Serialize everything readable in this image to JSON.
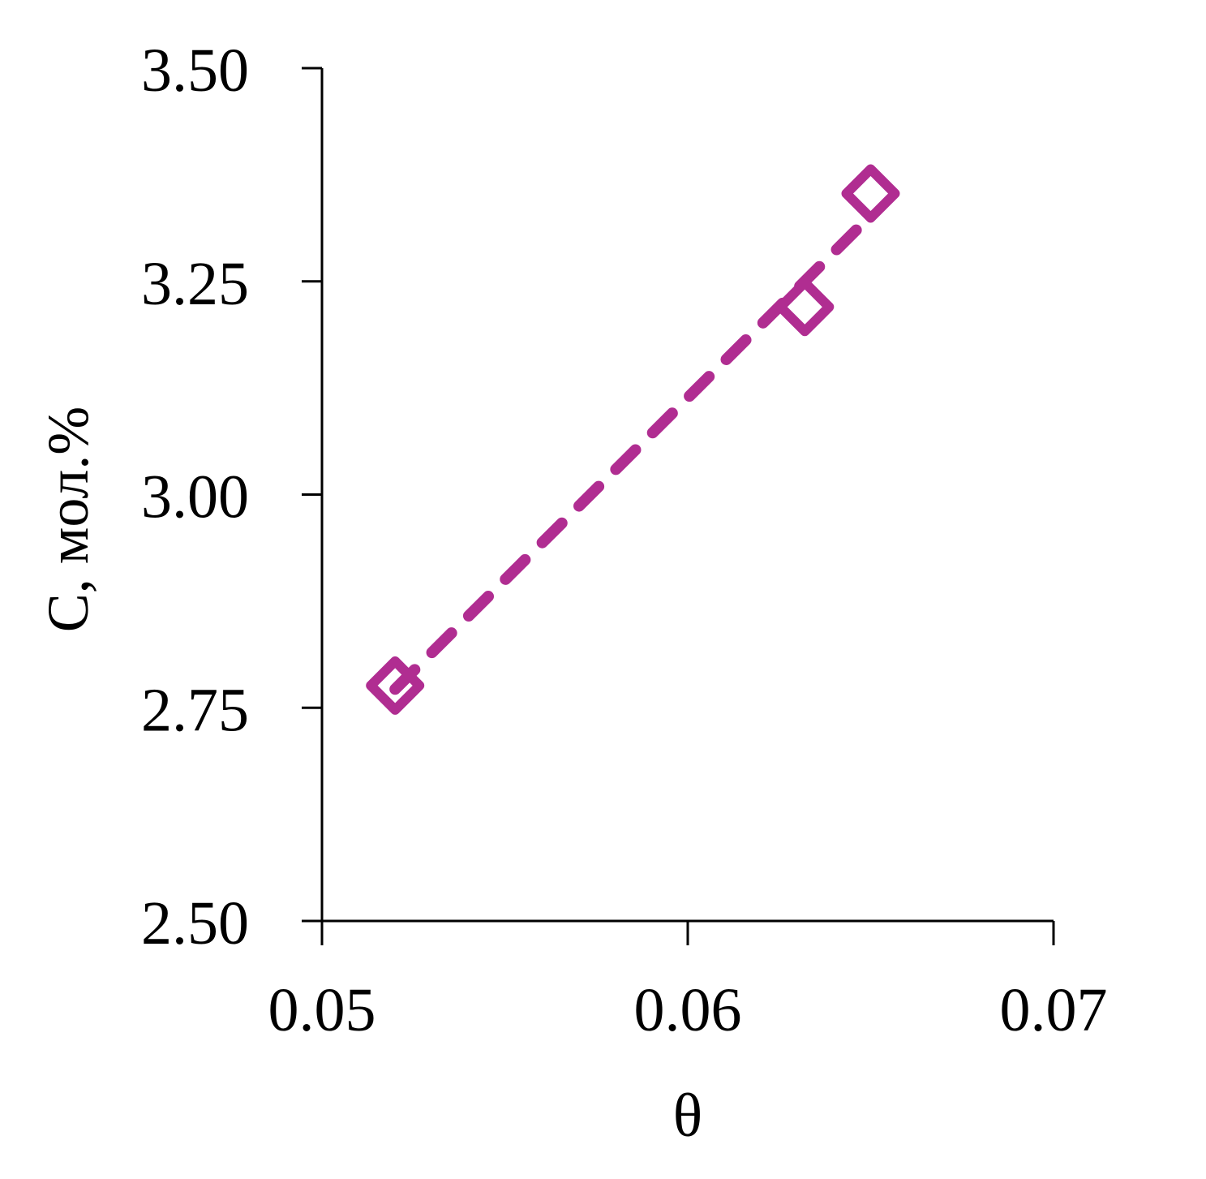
{
  "chart_data": {
    "type": "scatter",
    "title": "",
    "xlabel": "θ",
    "ylabel": "C, мол.%",
    "xlim": [
      0.05,
      0.07
    ],
    "ylim": [
      2.5,
      3.5
    ],
    "xticks": [
      "0.05",
      "0.06",
      "0.07"
    ],
    "yticks": [
      "2.50",
      "2.75",
      "3.00",
      "3.25",
      "3.50"
    ],
    "grid": false,
    "legend": "none",
    "series": [
      {
        "marker": "open-diamond",
        "color": "#b02d91",
        "x": [
          0.052,
          0.0632,
          0.065
        ],
        "y": [
          2.776,
          3.22,
          3.353
        ],
        "trendline": "linear-dashed"
      }
    ]
  }
}
